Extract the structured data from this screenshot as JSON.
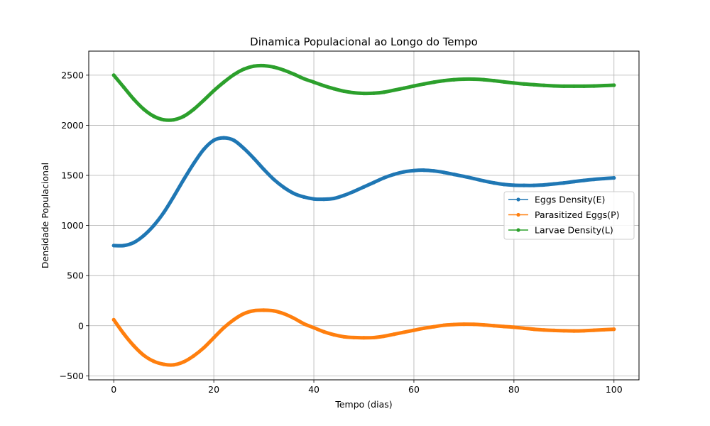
{
  "chart_data": {
    "type": "line",
    "title": "Dinamica Populacional ao Longo do Tempo",
    "xlabel": "Tempo (dias)",
    "ylabel": "Densidade Populacional",
    "xlim": [
      -5,
      105
    ],
    "ylim": [
      -540,
      2740
    ],
    "xticks": [
      0,
      20,
      40,
      60,
      80,
      100
    ],
    "yticks": [
      -500,
      0,
      500,
      1000,
      1500,
      2000,
      2500
    ],
    "grid": true,
    "legend_position": "center-right",
    "marker": "dot",
    "series": [
      {
        "name": "Eggs Density(E)",
        "color": "#1f77b4",
        "x": [
          0,
          2,
          4,
          6,
          8,
          10,
          12,
          14,
          16,
          18,
          20,
          22,
          24,
          26,
          28,
          30,
          32,
          34,
          36,
          38,
          40,
          42,
          44,
          46,
          48,
          50,
          52,
          54,
          56,
          58,
          60,
          62,
          64,
          66,
          68,
          70,
          72,
          74,
          76,
          78,
          80,
          82,
          84,
          86,
          88,
          90,
          92,
          94,
          96,
          98,
          100
        ],
        "y": [
          800,
          800,
          830,
          900,
          1000,
          1130,
          1290,
          1460,
          1620,
          1760,
          1850,
          1875,
          1850,
          1770,
          1670,
          1560,
          1460,
          1380,
          1320,
          1285,
          1265,
          1262,
          1270,
          1300,
          1340,
          1385,
          1430,
          1475,
          1510,
          1535,
          1548,
          1552,
          1545,
          1530,
          1510,
          1490,
          1468,
          1445,
          1425,
          1410,
          1402,
          1400,
          1400,
          1405,
          1415,
          1425,
          1438,
          1450,
          1460,
          1468,
          1475
        ]
      },
      {
        "name": "Parasitized Eggs(P)",
        "color": "#ff7f0e",
        "x": [
          0,
          2,
          4,
          6,
          8,
          10,
          12,
          14,
          16,
          18,
          20,
          22,
          24,
          26,
          28,
          30,
          32,
          34,
          36,
          38,
          40,
          42,
          44,
          46,
          48,
          50,
          52,
          54,
          56,
          58,
          60,
          62,
          64,
          66,
          68,
          70,
          72,
          74,
          76,
          78,
          80,
          82,
          84,
          86,
          88,
          90,
          92,
          94,
          96,
          98,
          100
        ],
        "y": [
          60,
          -80,
          -200,
          -295,
          -355,
          -385,
          -390,
          -360,
          -300,
          -220,
          -120,
          -20,
          60,
          120,
          150,
          155,
          148,
          120,
          75,
          20,
          -20,
          -60,
          -90,
          -110,
          -118,
          -120,
          -118,
          -105,
          -85,
          -65,
          -45,
          -25,
          -10,
          5,
          12,
          15,
          14,
          8,
          0,
          -8,
          -15,
          -25,
          -35,
          -42,
          -47,
          -50,
          -52,
          -50,
          -45,
          -40,
          -35
        ]
      },
      {
        "name": "Larvae Density(L)",
        "color": "#2ca02c",
        "x": [
          0,
          2,
          4,
          6,
          8,
          10,
          12,
          14,
          16,
          18,
          20,
          22,
          24,
          26,
          28,
          30,
          32,
          34,
          36,
          38,
          40,
          42,
          44,
          46,
          48,
          50,
          52,
          54,
          56,
          58,
          60,
          62,
          64,
          66,
          68,
          70,
          72,
          74,
          76,
          78,
          80,
          82,
          84,
          86,
          88,
          90,
          92,
          94,
          96,
          98,
          100
        ],
        "y": [
          2500,
          2380,
          2260,
          2160,
          2090,
          2055,
          2055,
          2090,
          2160,
          2250,
          2345,
          2430,
          2505,
          2560,
          2590,
          2595,
          2580,
          2550,
          2510,
          2465,
          2430,
          2395,
          2365,
          2340,
          2325,
          2318,
          2320,
          2330,
          2350,
          2370,
          2392,
          2412,
          2430,
          2445,
          2455,
          2460,
          2460,
          2455,
          2445,
          2433,
          2422,
          2412,
          2405,
          2398,
          2393,
          2390,
          2390,
          2390,
          2392,
          2396,
          2400
        ]
      }
    ]
  }
}
